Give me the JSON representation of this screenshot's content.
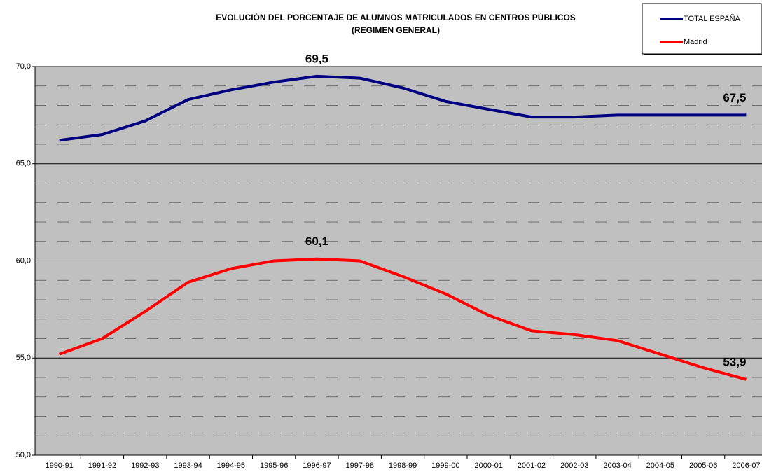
{
  "chart_data": {
    "type": "line",
    "title": [
      "EVOLUCIÓN DEL PORCENTAJE DE ALUMNOS MATRICULADOS EN CENTROS PÚBLICOS",
      "(REGIMEN GENERAL)"
    ],
    "categories": [
      "1990-91",
      "1991-92",
      "1992-93",
      "1993-94",
      "1994-95",
      "1995-96",
      "1996-97",
      "1997-98",
      "1998-99",
      "1999-00",
      "2000-01",
      "2001-02",
      "2002-03",
      "2003-04",
      "2004-05",
      "2005-06",
      "2006-07"
    ],
    "series": [
      {
        "name": "TOTAL ESPAÑA",
        "color": "#000080",
        "values": [
          66.2,
          66.5,
          67.2,
          68.3,
          68.8,
          69.2,
          69.5,
          69.4,
          68.9,
          68.2,
          67.8,
          67.4,
          67.4,
          67.5,
          67.5,
          67.5,
          67.5
        ],
        "value_labels": [
          null,
          null,
          null,
          null,
          null,
          null,
          "69,5",
          null,
          null,
          null,
          null,
          null,
          null,
          null,
          null,
          null,
          "67,5"
        ]
      },
      {
        "name": "Madrid",
        "color": "#ff0000",
        "values": [
          55.2,
          56.0,
          57.4,
          58.9,
          59.6,
          60.0,
          60.1,
          60.0,
          59.2,
          58.3,
          57.2,
          56.4,
          56.2,
          55.9,
          55.2,
          54.5,
          53.9
        ],
        "value_labels": [
          null,
          null,
          null,
          null,
          null,
          null,
          "60,1",
          null,
          null,
          null,
          null,
          null,
          null,
          null,
          null,
          null,
          "53,9"
        ]
      }
    ],
    "ylim": [
      50,
      70
    ],
    "yticks": [
      {
        "value": 50,
        "label": "50,0"
      },
      {
        "value": 55,
        "label": "55,0"
      },
      {
        "value": 60,
        "label": "60,0"
      },
      {
        "value": 65,
        "label": "65,0"
      },
      {
        "value": 70,
        "label": "70,0"
      }
    ],
    "minor_yticks": [
      51,
      52,
      53,
      54,
      56,
      57,
      58,
      59,
      61,
      62,
      63,
      64,
      66,
      67,
      68,
      69
    ],
    "grid": true,
    "legend": "top-right"
  }
}
